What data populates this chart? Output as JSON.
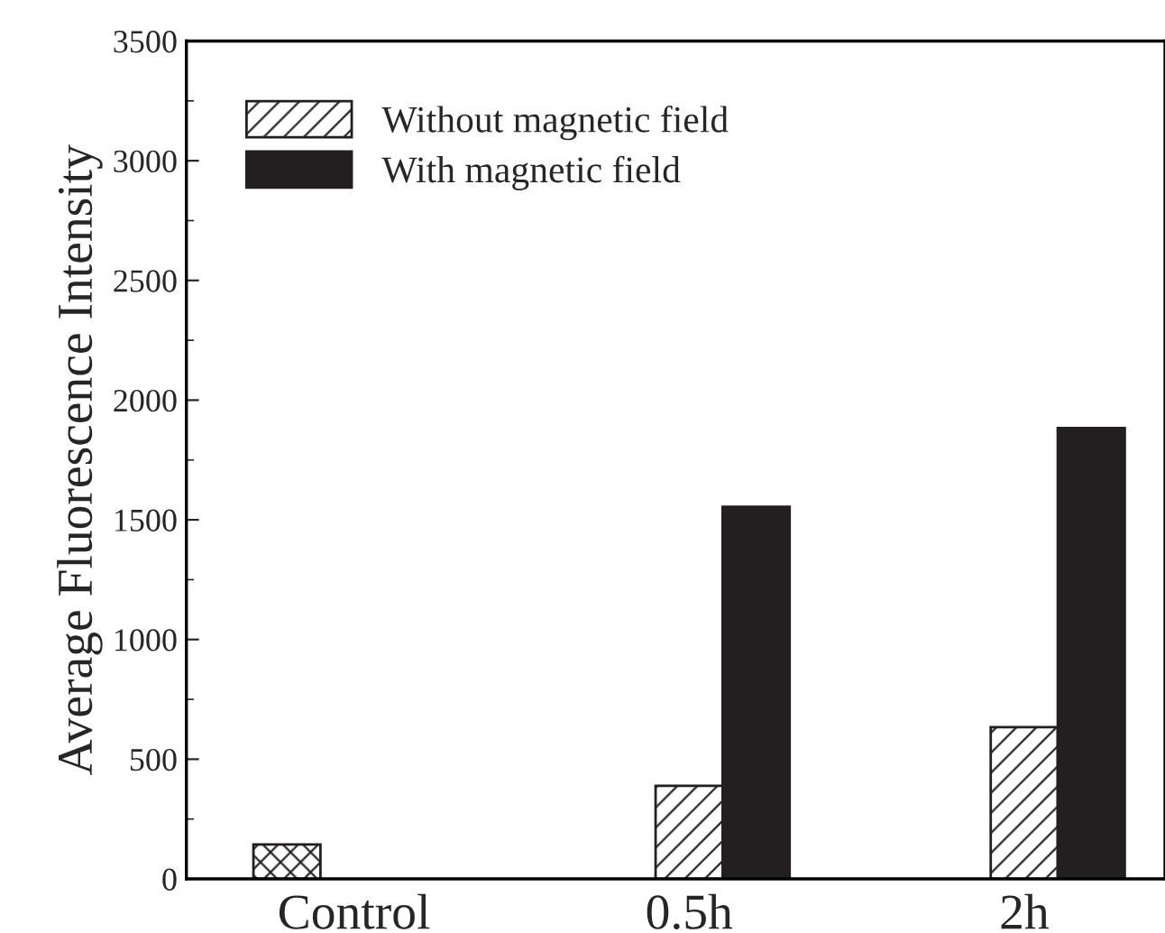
{
  "chart_data": {
    "type": "bar",
    "ylabel": "Average Fluorescence Intensity",
    "categories": [
      "Control",
      "0.5h",
      "2h"
    ],
    "series": [
      {
        "color": "#231f20",
        "values": [
          144,
          null,
          null
        ]
      },
      {
        "name": "Without magnetic field",
        "color": "#231f20",
        "values": [
          null,
          389,
          634
        ]
      },
      {
        "name": "With magnetic field",
        "color": "#231f20",
        "values": [
          null,
          1554,
          1883
        ]
      }
    ],
    "ylim": [
      0,
      3500
    ],
    "yticks": [
      0,
      500,
      1000,
      1500,
      2000,
      2500,
      3000,
      3500
    ],
    "grid": false,
    "legend": "top left"
  }
}
